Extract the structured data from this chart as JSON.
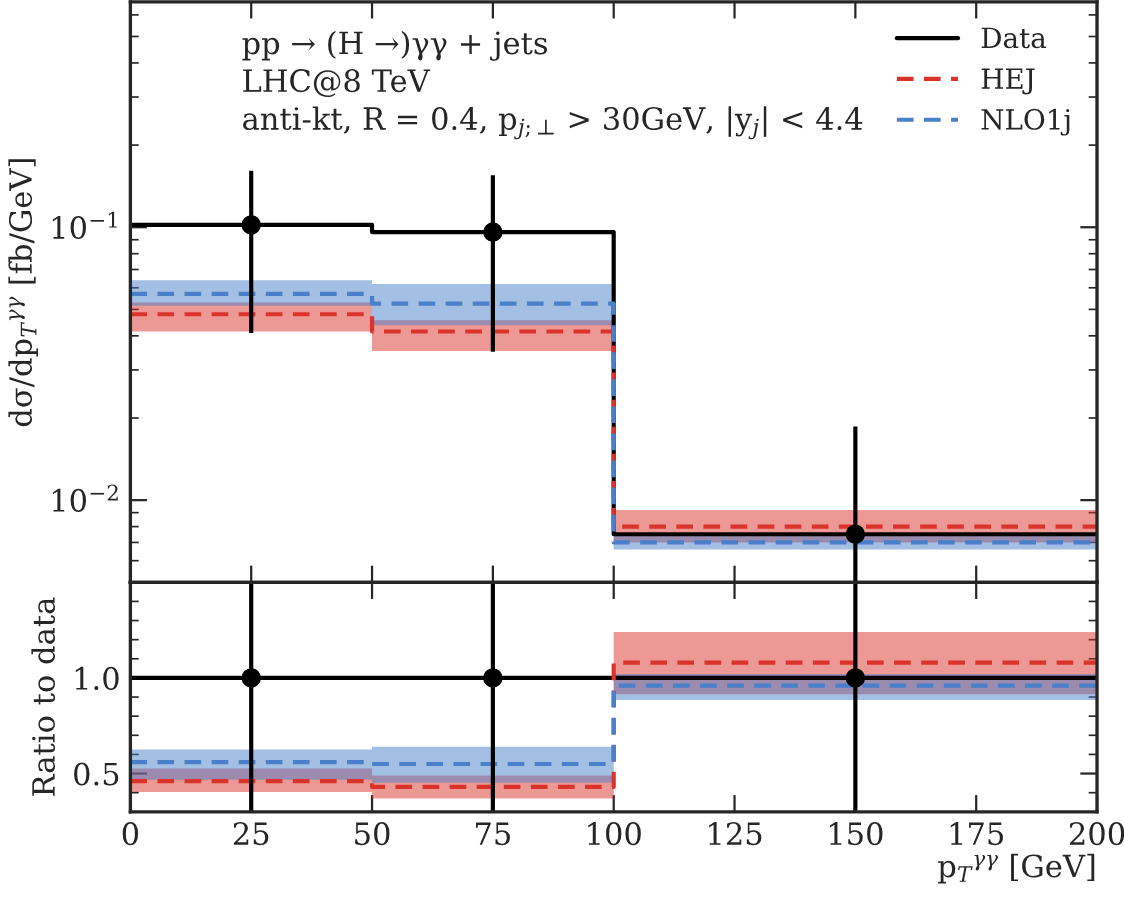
{
  "chart_data": [
    {
      "type": "step",
      "ylabel": "dσ/dp$_{T}$$^{γγ}$ [fb/GeV]",
      "log": "y",
      "ylim": [
        0.005,
        0.67
      ],
      "yticks": [
        {
          "value": 0.1,
          "label": "10$^{−1}$"
        },
        {
          "value": 0.01,
          "label": "10$^{−2}$"
        }
      ],
      "xlim": [
        0,
        200
      ],
      "xticks": [
        0,
        25,
        50,
        75,
        100,
        125,
        150,
        175,
        200
      ],
      "tick_labels": "y",
      "legend": "top right",
      "annotations": [
        "pp → (H →)γγ + jets",
        "LHC@8 TeV",
        "anti-kt, R = 0.4, p$_{j;⊥}$ > 30GeV, |y$_{j}$| < 4.4"
      ],
      "series": [
        {
          "name": "Data",
          "color": "#000000",
          "line_style": "solid",
          "x": [
            0,
            50,
            100,
            200
          ],
          "values": [
            0.102,
            0.096,
            0.0075,
            0.0075
          ]
        },
        {
          "name": "HEJ",
          "color": "#d9332b",
          "line_style": "dashed",
          "x": [
            0,
            50,
            100,
            200
          ],
          "values": [
            0.048,
            0.0415,
            0.008,
            0.008
          ],
          "lower": [
            0.0415,
            0.0352,
            0.007,
            0.007
          ],
          "upper": [
            0.053,
            0.0456,
            0.0092,
            0.0092
          ]
        },
        {
          "name": "NLO1j",
          "color": "#4a7fc9",
          "line_style": "dashed",
          "x": [
            0,
            50,
            100,
            200
          ],
          "values": [
            0.057,
            0.0525,
            0.007,
            0.007
          ],
          "lower": [
            0.0516,
            0.0437,
            0.0066,
            0.0066
          ],
          "upper": [
            0.064,
            0.062,
            0.0074,
            0.0074
          ]
        },
        {
          "type": "scatter",
          "color": "#000000",
          "marker": "circle",
          "x": [
            25,
            75,
            150
          ],
          "values": [
            0.102,
            0.096,
            0.0075
          ],
          "errors": [
            [
              0.041,
              0.161
            ],
            [
              0.035,
              0.155
            ],
            [
              0.005,
              0.0186
            ]
          ]
        }
      ]
    },
    {
      "type": "step",
      "ylabel": "Ratio to data",
      "xlabel": "p$_{T}$$^{γγ}$ [GeV]",
      "ylim": [
        0.3,
        1.5
      ],
      "yticks": [
        {
          "value": 0.5,
          "label": "0.5"
        },
        {
          "value": 1.0,
          "label": "1.0"
        }
      ],
      "xlim": [
        0,
        200
      ],
      "xticks": [
        0,
        25,
        50,
        75,
        100,
        125,
        150,
        175,
        200
      ],
      "series": [
        {
          "color": "#000000",
          "line_style": "solid",
          "x": [
            0,
            50,
            100,
            200
          ],
          "values": [
            1.0,
            1.0,
            1.0,
            1.0
          ]
        },
        {
          "color": "#d9332b",
          "line_style": "dashed",
          "x": [
            0,
            50,
            100,
            200
          ],
          "values": [
            0.46,
            0.43,
            1.08,
            1.08
          ],
          "lower": [
            0.404,
            0.37,
            0.915,
            0.915
          ],
          "upper": [
            0.526,
            0.49,
            1.24,
            1.24
          ]
        },
        {
          "color": "#4a7fc9",
          "line_style": "dashed",
          "x": [
            0,
            50,
            100,
            200
          ],
          "values": [
            0.56,
            0.55,
            0.96,
            0.96
          ],
          "lower": [
            0.467,
            0.452,
            0.885,
            0.885
          ],
          "upper": [
            0.626,
            0.64,
            1.02,
            1.02
          ]
        },
        {
          "type": "scatter",
          "color": "#000000",
          "marker": "circle",
          "x": [
            25,
            75,
            150
          ],
          "values": [
            1.0,
            1.0,
            1.0
          ],
          "errors": [
            [
              0.3,
              1.5
            ],
            [
              0.3,
              1.5
            ],
            [
              0.3,
              1.5
            ]
          ]
        }
      ]
    }
  ]
}
